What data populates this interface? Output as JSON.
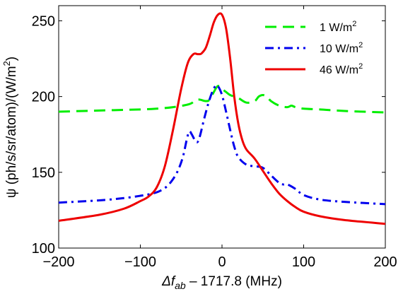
{
  "chart_data": {
    "type": "line",
    "xlabel": {
      "main": "Δf",
      "sub": "ab",
      "rest": " – 1717.8  (MHz)"
    },
    "ylabel": {
      "main": "ψ  (ph/s/sr/atom)/(W/m",
      "sup": "2",
      "close": ")"
    },
    "xlim": [
      -200,
      200
    ],
    "ylim": [
      100,
      260
    ],
    "xticks": [
      -200,
      -100,
      0,
      100,
      200
    ],
    "xtick_labels": [
      "−200",
      "−100",
      "0",
      "100",
      "200"
    ],
    "yticks": [
      100,
      150,
      200,
      250
    ],
    "ytick_labels": [
      "100",
      "150",
      "200",
      "250"
    ],
    "grid": false,
    "legend_position": "top-right",
    "series": [
      {
        "name": "1 W/m",
        "name_sup": "2",
        "color": "#00ee00",
        "dash": "dashed",
        "x": [
          -200,
          -150,
          -100,
          -80,
          -60,
          -40,
          -30,
          -20,
          -15,
          -10,
          -5,
          0,
          5,
          10,
          20,
          30,
          40,
          45,
          50,
          55,
          60,
          70,
          80,
          85,
          90,
          100,
          120,
          150,
          200
        ],
        "y": [
          190,
          190.8,
          191.5,
          192,
          193,
          195,
          198,
          197,
          198,
          203,
          207,
          205,
          203,
          201,
          199,
          196,
          197,
          200,
          201,
          200,
          197,
          194,
          193,
          194,
          193,
          192,
          191.5,
          190.5,
          189.5
        ]
      },
      {
        "name": "10 W/m",
        "name_sup": "2",
        "color": "#0000ee",
        "dash": "dashdot",
        "x": [
          -200,
          -150,
          -120,
          -100,
          -85,
          -75,
          -65,
          -55,
          -48,
          -43,
          -40,
          -37,
          -33,
          -30,
          -27,
          -22,
          -17,
          -12,
          -8,
          -5,
          0,
          5,
          10,
          15,
          20,
          30,
          40,
          50,
          60,
          70,
          75,
          80,
          90,
          100,
          120,
          150,
          200
        ],
        "y": [
          130,
          131.5,
          133,
          134.5,
          136,
          138,
          142,
          150,
          160,
          172,
          177,
          175,
          171,
          170,
          174,
          185,
          195,
          203,
          207,
          207,
          201,
          190,
          178,
          167,
          160,
          155,
          154,
          153,
          148,
          143,
          142,
          142,
          139,
          135,
          132,
          130.5,
          129
        ]
      },
      {
        "name": "46 W/m",
        "name_sup": "2",
        "color": "#ee0000",
        "dash": "solid",
        "x": [
          -200,
          -150,
          -120,
          -100,
          -90,
          -80,
          -70,
          -60,
          -50,
          -42,
          -35,
          -30,
          -27,
          -25,
          -20,
          -15,
          -10,
          -5,
          0,
          5,
          10,
          15,
          20,
          25,
          30,
          40,
          50,
          60,
          70,
          80,
          90,
          100,
          120,
          150,
          200
        ],
        "y": [
          118,
          122,
          126,
          131,
          134,
          140,
          154,
          178,
          205,
          222,
          228,
          228,
          228,
          228.5,
          232,
          240,
          249,
          254,
          254,
          245,
          225,
          200,
          182,
          171,
          165,
          159,
          151,
          143,
          136,
          131,
          127,
          124,
          121,
          118.5,
          116
        ]
      }
    ]
  }
}
